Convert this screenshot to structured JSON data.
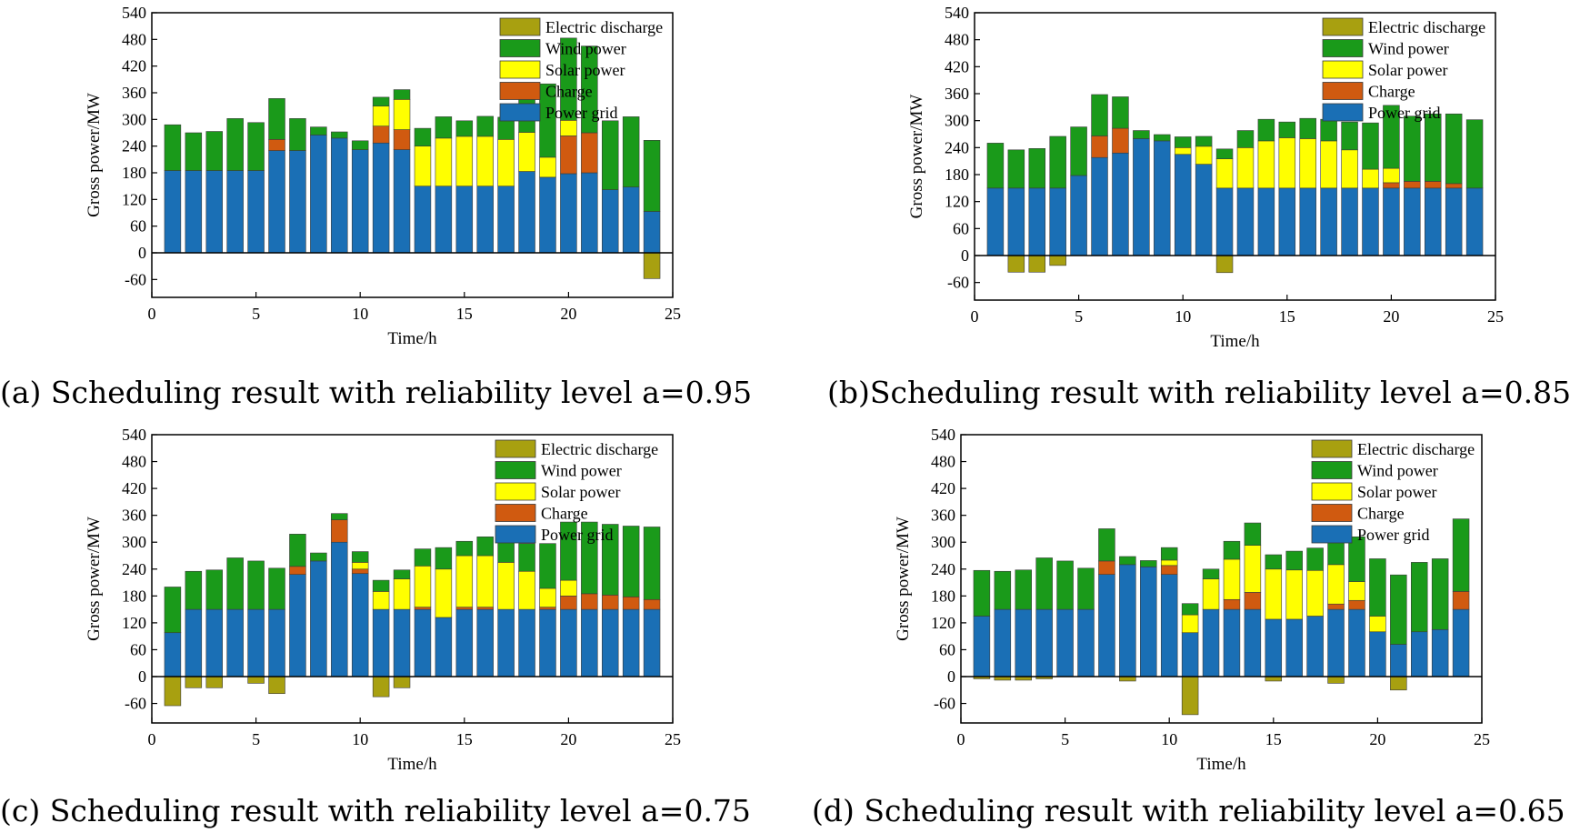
{
  "series_order": [
    "Power grid",
    "Charge",
    "Solar power",
    "Wind power",
    "Electric discharge"
  ],
  "legend_order": [
    "Electric discharge",
    "Wind power",
    "Solar power",
    "Charge",
    "Power grid"
  ],
  "colors": {
    "Power grid": "#1a6fb5",
    "Charge": "#d05a10",
    "Solar power": "#ffff00",
    "Wind power": "#1a9a1a",
    "Electric discharge": "#a8a010"
  },
  "chart_data": [
    {
      "type": "bar",
      "caption": "(a) Scheduling result with reliability level a=0.95",
      "xlabel": "Time/h",
      "ylabel": "Gross power/MW",
      "xlim": [
        0,
        25
      ],
      "ylim": [
        -100,
        540
      ],
      "xticks": [
        0,
        5,
        10,
        15,
        20,
        25
      ],
      "yticks": [
        540,
        480,
        420,
        360,
        300,
        240,
        180,
        120,
        60,
        0,
        -60
      ],
      "x": [
        1,
        2,
        3,
        4,
        5,
        6,
        7,
        8,
        9,
        10,
        11,
        12,
        13,
        14,
        15,
        16,
        17,
        18,
        19,
        20,
        21,
        22,
        23,
        24
      ],
      "series": [
        {
          "name": "Power grid",
          "values": [
            185,
            185,
            185,
            185,
            185,
            230,
            230,
            265,
            258,
            232,
            247,
            232,
            150,
            150,
            150,
            150,
            150,
            183,
            170,
            178,
            180,
            142,
            148,
            93
          ]
        },
        {
          "name": "Charge",
          "values": [
            0,
            0,
            0,
            0,
            0,
            25,
            0,
            0,
            0,
            0,
            38,
            45,
            0,
            0,
            0,
            0,
            0,
            0,
            0,
            85,
            90,
            0,
            0,
            0
          ]
        },
        {
          "name": "Solar power",
          "values": [
            0,
            0,
            0,
            0,
            0,
            0,
            0,
            0,
            0,
            0,
            45,
            68,
            90,
            108,
            112,
            112,
            105,
            88,
            45,
            35,
            0,
            0,
            0,
            0
          ]
        },
        {
          "name": "Wind power",
          "values": [
            103,
            85,
            88,
            117,
            108,
            92,
            72,
            18,
            14,
            20,
            20,
            22,
            40,
            48,
            35,
            45,
            50,
            112,
            165,
            185,
            195,
            155,
            158,
            160
          ]
        },
        {
          "name": "Electric discharge",
          "values": [
            0,
            0,
            0,
            0,
            0,
            0,
            0,
            0,
            0,
            0,
            0,
            0,
            0,
            0,
            0,
            0,
            0,
            0,
            0,
            0,
            0,
            0,
            0,
            -58
          ]
        }
      ]
    },
    {
      "type": "bar",
      "caption": "(b)Scheduling result with reliability level a=0.85",
      "xlabel": "Time/h",
      "ylabel": "Gross power/MW",
      "xlim": [
        0,
        25
      ],
      "ylim": [
        -100,
        540
      ],
      "xticks": [
        0,
        5,
        10,
        15,
        20,
        25
      ],
      "yticks": [
        540,
        480,
        420,
        360,
        300,
        240,
        180,
        120,
        60,
        0,
        -60
      ],
      "x": [
        1,
        2,
        3,
        4,
        5,
        6,
        7,
        8,
        9,
        10,
        11,
        12,
        13,
        14,
        15,
        16,
        17,
        18,
        19,
        20,
        21,
        22,
        23,
        24
      ],
      "series": [
        {
          "name": "Power grid",
          "values": [
            150,
            150,
            150,
            150,
            178,
            218,
            228,
            260,
            255,
            225,
            203,
            150,
            150,
            150,
            150,
            150,
            150,
            150,
            150,
            150,
            150,
            150,
            150,
            150
          ]
        },
        {
          "name": "Charge",
          "values": [
            0,
            0,
            0,
            0,
            0,
            48,
            55,
            0,
            0,
            0,
            0,
            0,
            0,
            0,
            0,
            0,
            0,
            0,
            0,
            12,
            15,
            15,
            10,
            0
          ]
        },
        {
          "name": "Solar power",
          "values": [
            0,
            0,
            0,
            0,
            0,
            0,
            0,
            0,
            0,
            15,
            40,
            65,
            90,
            105,
            112,
            110,
            105,
            85,
            42,
            32,
            0,
            0,
            0,
            0
          ]
        },
        {
          "name": "Wind power",
          "values": [
            100,
            85,
            88,
            115,
            108,
            92,
            70,
            18,
            14,
            24,
            22,
            22,
            38,
            48,
            35,
            45,
            48,
            62,
            103,
            140,
            145,
            150,
            155,
            152
          ]
        },
        {
          "name": "Electric discharge",
          "values": [
            0,
            -37,
            -37,
            -22,
            0,
            0,
            0,
            0,
            0,
            0,
            0,
            -38,
            0,
            0,
            0,
            0,
            0,
            0,
            0,
            0,
            0,
            0,
            0,
            0
          ]
        }
      ]
    },
    {
      "type": "bar",
      "caption": "(c) Scheduling result with reliability level a=0.75",
      "xlabel": "Time/h",
      "ylabel": "Gross power/MW",
      "xlim": [
        0,
        25
      ],
      "ylim": [
        -100,
        540
      ],
      "xticks": [
        0,
        5,
        10,
        15,
        20,
        25
      ],
      "yticks": [
        540,
        480,
        420,
        360,
        300,
        240,
        180,
        120,
        60,
        0,
        -60
      ],
      "x": [
        1,
        2,
        3,
        4,
        5,
        6,
        7,
        8,
        9,
        10,
        11,
        12,
        13,
        14,
        15,
        16,
        17,
        18,
        19,
        20,
        21,
        22,
        23,
        24
      ],
      "series": [
        {
          "name": "Power grid",
          "values": [
            98,
            150,
            150,
            150,
            150,
            150,
            228,
            258,
            300,
            230,
            150,
            150,
            150,
            132,
            150,
            150,
            150,
            150,
            150,
            150,
            150,
            150,
            150,
            150
          ]
        },
        {
          "name": "Charge",
          "values": [
            0,
            0,
            0,
            0,
            0,
            0,
            18,
            0,
            50,
            10,
            0,
            0,
            5,
            0,
            5,
            5,
            0,
            0,
            5,
            30,
            35,
            32,
            28,
            22
          ]
        },
        {
          "name": "Solar power",
          "values": [
            0,
            0,
            0,
            0,
            0,
            0,
            0,
            0,
            0,
            15,
            40,
            68,
            92,
            108,
            115,
            115,
            105,
            85,
            42,
            35,
            0,
            0,
            0,
            0
          ]
        },
        {
          "name": "Wind power",
          "values": [
            102,
            85,
            88,
            115,
            108,
            92,
            72,
            18,
            14,
            24,
            25,
            20,
            38,
            48,
            32,
            42,
            52,
            62,
            100,
            130,
            160,
            158,
            158,
            162
          ]
        },
        {
          "name": "Electric discharge",
          "values": [
            -65,
            -25,
            -25,
            0,
            -15,
            -38,
            0,
            0,
            0,
            0,
            -45,
            -25,
            0,
            0,
            0,
            0,
            0,
            0,
            0,
            0,
            0,
            0,
            0,
            0
          ]
        }
      ]
    },
    {
      "type": "bar",
      "caption": "(d) Scheduling result with reliability level a=0.65",
      "xlabel": "Time/h",
      "ylabel": "Gross power/MW",
      "xlim": [
        0,
        25
      ],
      "ylim": [
        -100,
        540
      ],
      "xticks": [
        0,
        5,
        10,
        15,
        20,
        25
      ],
      "yticks": [
        540,
        480,
        420,
        360,
        300,
        240,
        180,
        120,
        60,
        0,
        -60
      ],
      "x": [
        1,
        2,
        3,
        4,
        5,
        6,
        7,
        8,
        9,
        10,
        11,
        12,
        13,
        14,
        15,
        16,
        17,
        18,
        19,
        20,
        21,
        22,
        23,
        24
      ],
      "series": [
        {
          "name": "Power grid",
          "values": [
            135,
            150,
            150,
            150,
            150,
            150,
            228,
            250,
            245,
            228,
            98,
            150,
            150,
            150,
            128,
            128,
            135,
            150,
            150,
            100,
            72,
            100,
            105,
            150
          ]
        },
        {
          "name": "Charge",
          "values": [
            0,
            0,
            0,
            0,
            0,
            0,
            30,
            0,
            0,
            20,
            0,
            0,
            22,
            38,
            0,
            0,
            0,
            12,
            20,
            0,
            0,
            0,
            0,
            40
          ]
        },
        {
          "name": "Solar power",
          "values": [
            0,
            0,
            0,
            0,
            0,
            0,
            0,
            0,
            0,
            12,
            40,
            68,
            90,
            105,
            112,
            110,
            102,
            88,
            42,
            35,
            0,
            0,
            0,
            0
          ]
        },
        {
          "name": "Wind power",
          "values": [
            102,
            85,
            88,
            115,
            108,
            92,
            72,
            18,
            14,
            28,
            25,
            22,
            40,
            50,
            32,
            42,
            50,
            60,
            100,
            128,
            155,
            155,
            158,
            162
          ]
        },
        {
          "name": "Electric discharge",
          "values": [
            -5,
            -8,
            -8,
            -5,
            0,
            0,
            0,
            -10,
            0,
            0,
            -85,
            0,
            0,
            0,
            -10,
            0,
            0,
            -15,
            0,
            0,
            -30,
            0,
            0,
            0
          ]
        }
      ]
    }
  ]
}
